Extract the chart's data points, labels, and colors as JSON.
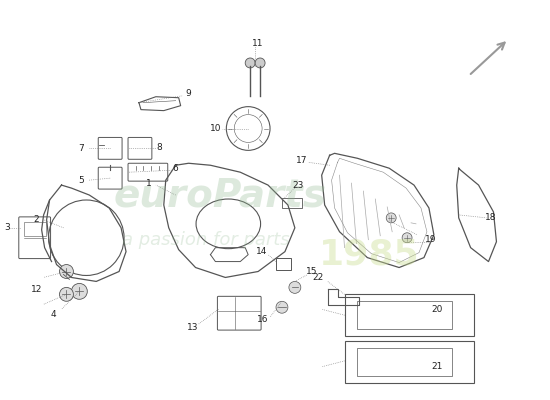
{
  "bg_color": "#ffffff",
  "line_color": "#555555",
  "label_color": "#333333",
  "label_fontsize": 6.5,
  "figw": 5.5,
  "figh": 4.0,
  "dpi": 100
}
